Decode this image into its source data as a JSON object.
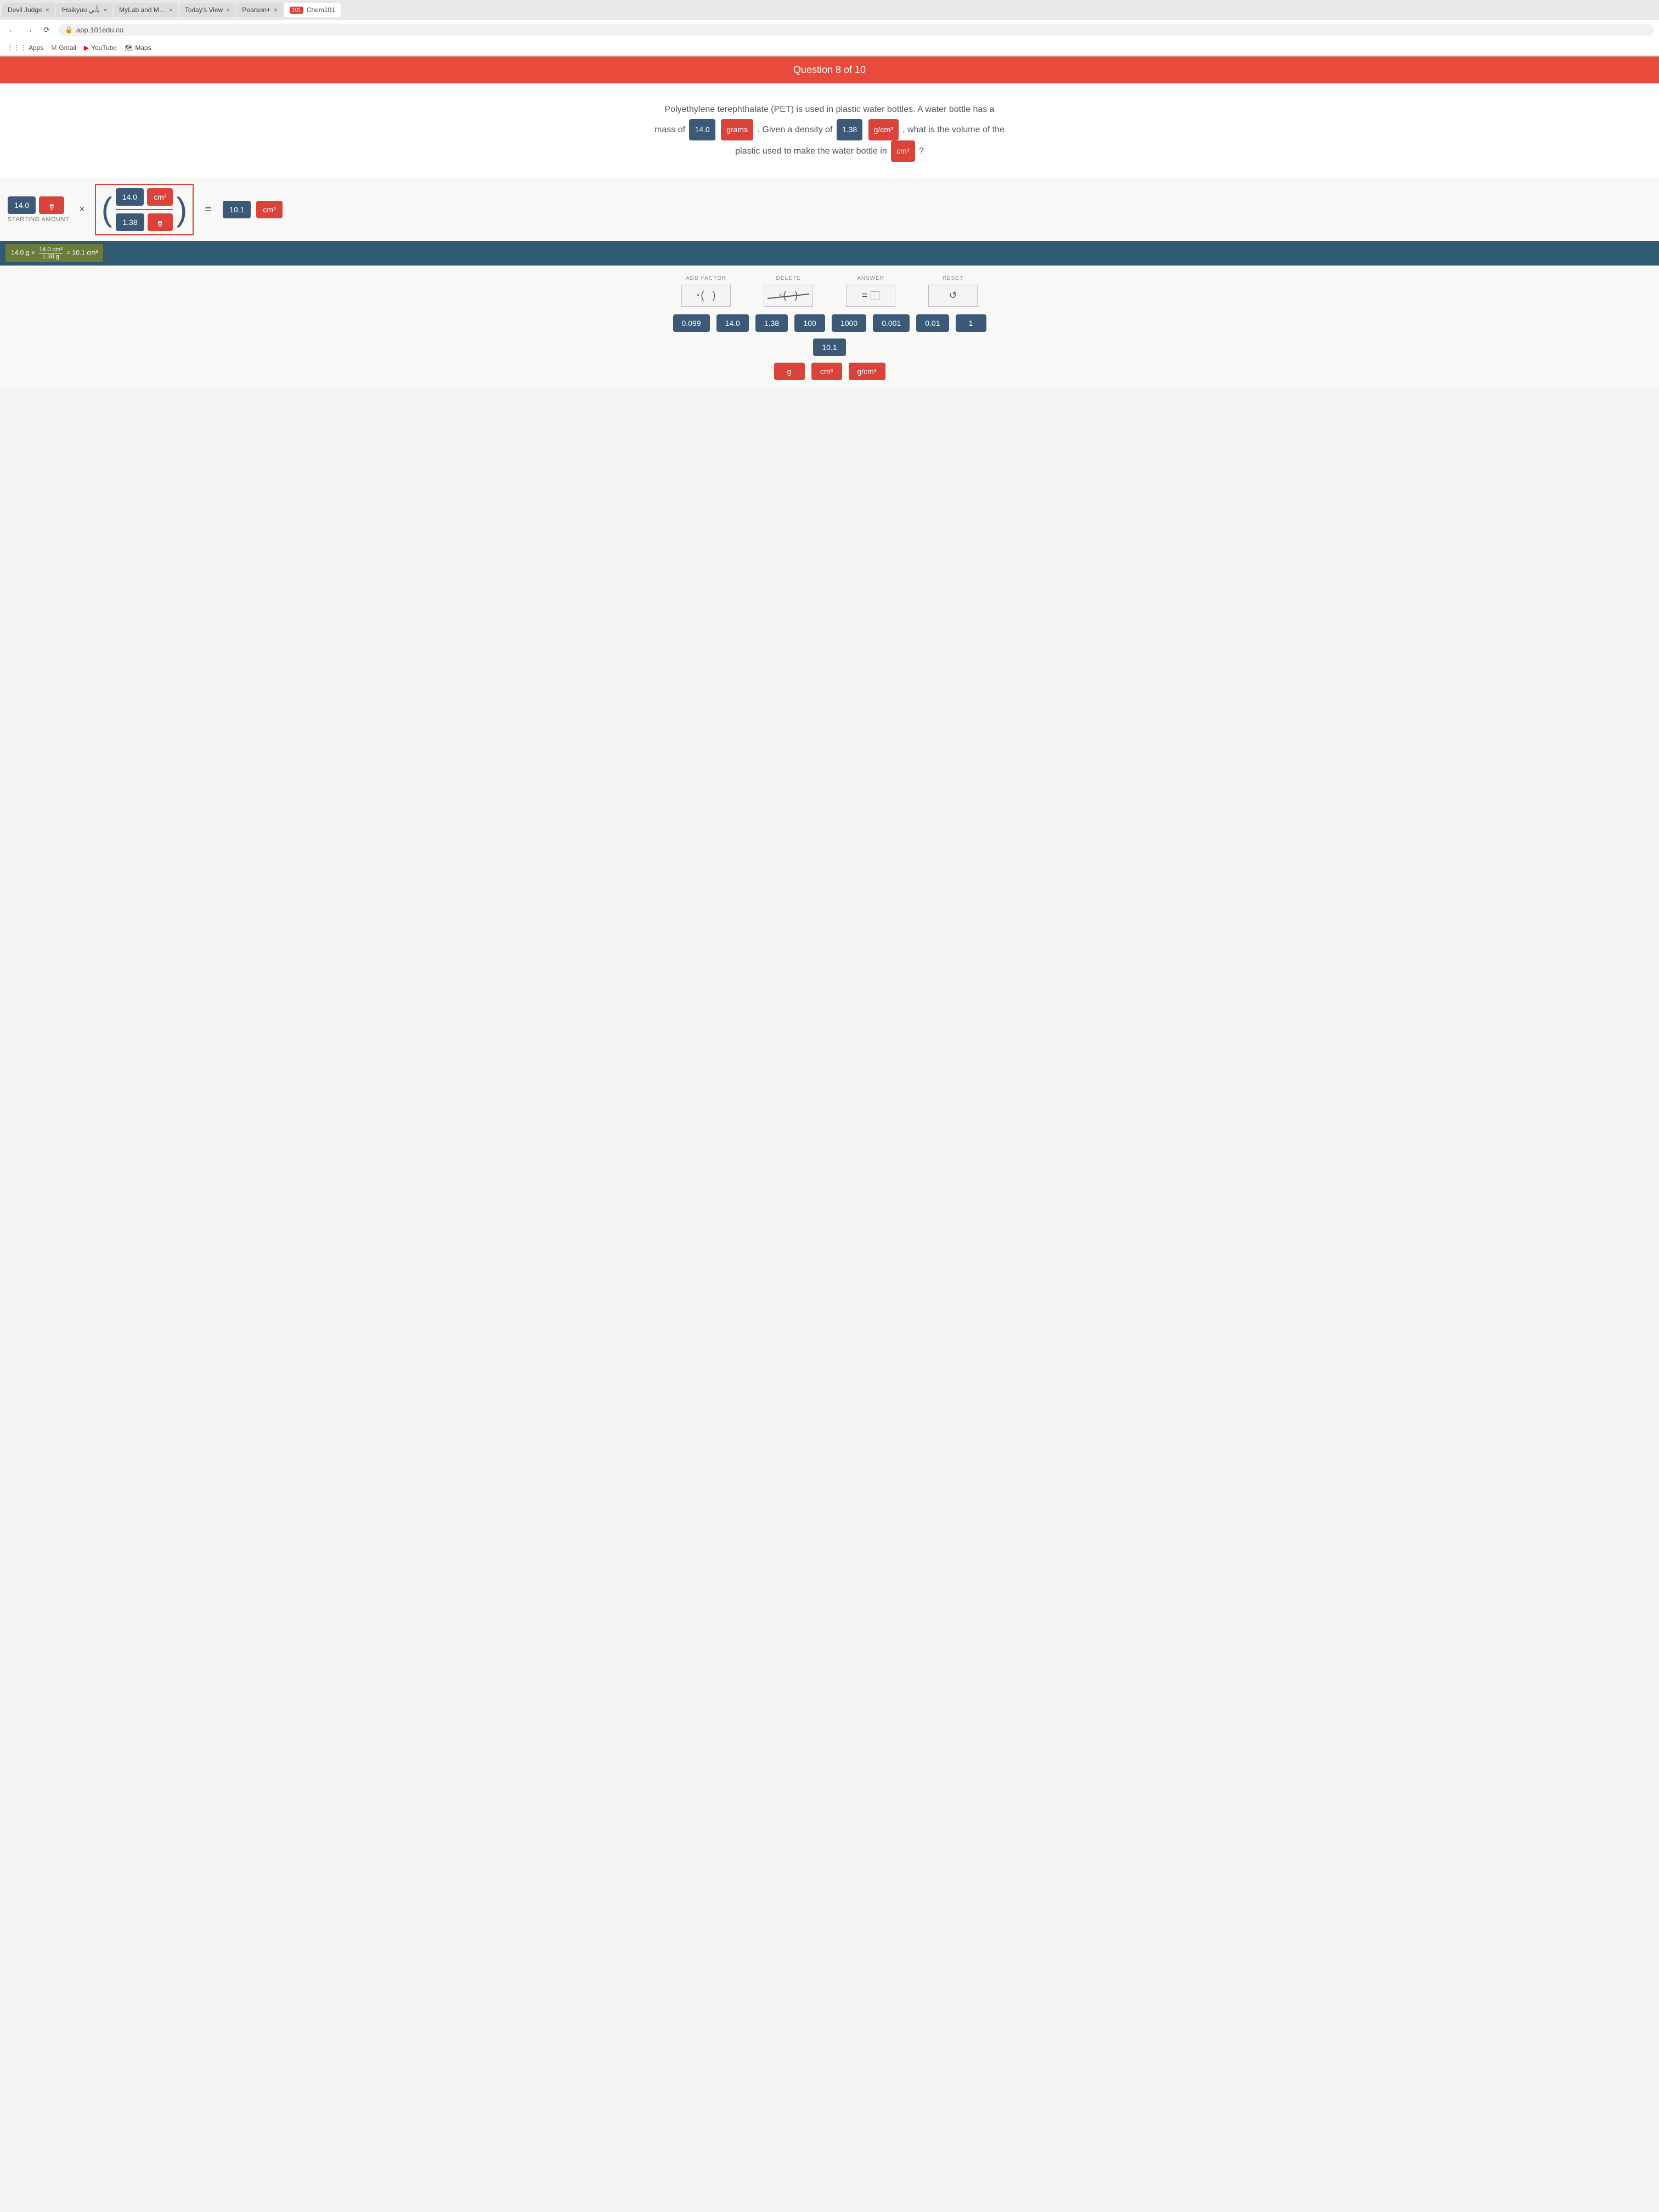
{
  "browser": {
    "tabs": [
      {
        "label": "Devil Judge"
      },
      {
        "label": "!Haikyuu يأتي"
      },
      {
        "label": "MyLab and M…"
      },
      {
        "label": "Today's View"
      },
      {
        "label": "Pearson+"
      },
      {
        "label": "Chem101",
        "active": true,
        "badge": "101"
      }
    ],
    "url": "app.101edu.co",
    "bookmarks": {
      "apps": "Apps",
      "gmail": "Gmail",
      "youtube": "YouTube",
      "maps": "Maps"
    }
  },
  "header": {
    "title": "Question 8 of 10"
  },
  "question": {
    "text_1": "Polyethylene terephthalate (PET) is used in plastic water bottles. A water bottle has a",
    "text_2a": "mass of",
    "mass_val": "14.0",
    "mass_unit": "grams",
    "text_2b": ". Given a density of",
    "density_val": "1.38",
    "density_unit": "g/cm³",
    "text_2c": ", what is the volume of the",
    "text_3a": "plastic used to make the water bottle in",
    "vol_unit": "cm³",
    "text_3b": "?"
  },
  "work": {
    "start_value": "14.0",
    "start_unit_strike": "g",
    "start_label": "STARTING AMOUNT",
    "factor_num_val": "14.0",
    "factor_num_unit": "cm³",
    "factor_den_val": "1.38",
    "factor_den_unit": "g",
    "result_val": "10.1",
    "result_unit": "cm³"
  },
  "summary": {
    "lhs_val": "14.0 g",
    "frac_top": "14.0 cm³",
    "frac_bot": "1.38 g",
    "rhs": "= 10.1 cm³"
  },
  "controls": {
    "add_factor": "ADD FACTOR",
    "delete": "DELETE",
    "answer": "ANSWER",
    "reset": "RESET",
    "add_factor_sym": "×  (   )",
    "delete_sym": "× ( )",
    "answer_sym": "=",
    "reset_sym": "↺"
  },
  "tiles_numbers": [
    "0.099",
    "14.0",
    "1.38",
    "100",
    "1000",
    "0.001",
    "0.01",
    "1"
  ],
  "tiles_numbers2": [
    "10.1"
  ],
  "tiles_units": [
    "g",
    "cm³",
    "g/cm³"
  ],
  "colors": {
    "red": "#d9433a",
    "blue": "#3c5a78",
    "bar": "#e84b3c",
    "strip": "#2f5a73",
    "summary_bg": "#6a7b3a"
  }
}
